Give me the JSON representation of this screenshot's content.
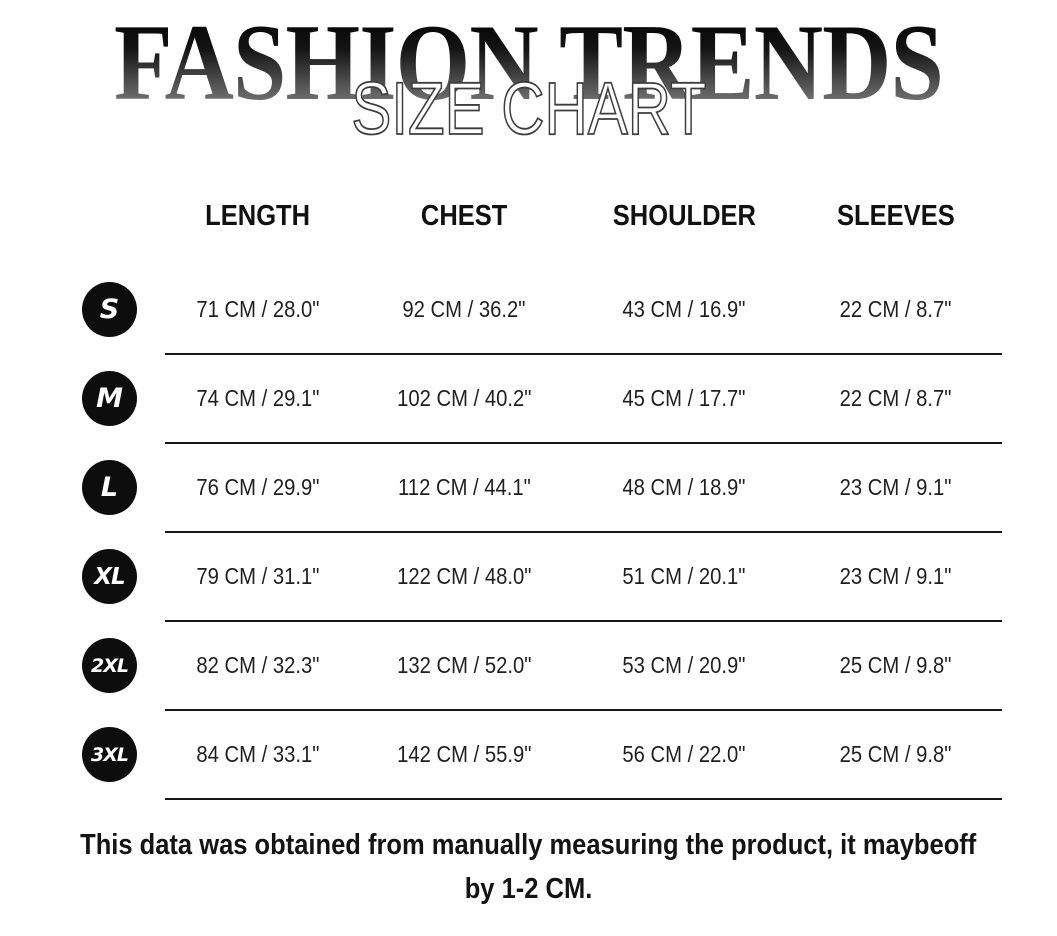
{
  "title": "FASHION TRENDS",
  "subtitle_overlay": "SIZE CHART",
  "chart_data": {
    "type": "table",
    "title": "FASHION TRENDS",
    "subtitle": "SIZE CHART",
    "columns": [
      "LENGTH",
      "CHEST",
      "SHOULDER",
      "SLEEVES"
    ],
    "rows": [
      {
        "size": "S",
        "cells": [
          "71 CM / 28.0\"",
          "92 CM / 36.2\"",
          "43 CM / 16.9\"",
          "22 CM / 8.7\""
        ]
      },
      {
        "size": "M",
        "cells": [
          "74 CM / 29.1\"",
          "102 CM / 40.2\"",
          "45 CM / 17.7\"",
          "22 CM / 8.7\""
        ]
      },
      {
        "size": "L",
        "cells": [
          "76 CM / 29.9\"",
          "112 CM / 44.1\"",
          "48 CM / 18.9\"",
          "23 CM / 9.1\""
        ]
      },
      {
        "size": "XL",
        "cells": [
          "79 CM / 31.1\"",
          "122 CM / 48.0\"",
          "51 CM / 20.1\"",
          "23 CM / 9.1\""
        ]
      },
      {
        "size": "2XL",
        "cells": [
          "82 CM / 32.3\"",
          "132 CM / 52.0\"",
          "53 CM / 20.9\"",
          "25 CM / 9.8\""
        ]
      },
      {
        "size": "3XL",
        "cells": [
          "84 CM / 33.1\"",
          "142 CM / 55.9\"",
          "56 CM / 22.0\"",
          "25 CM / 9.8\""
        ]
      }
    ],
    "note_line1": "This data was obtained from manually measuring the product, it maybeoff",
    "note_line2": "by 1-2 CM."
  },
  "colors": {
    "background": "#ffffff",
    "badge_bg": "#0d0d0d",
    "badge_text": "#ffffff",
    "body_text": "#1f1f1f",
    "divider": "#161616",
    "title_gradient_top": "#000000",
    "title_gradient_bottom": "#8c8c8c",
    "overlay_fill": "#ffffff",
    "overlay_stroke": "#3d3d3d"
  }
}
